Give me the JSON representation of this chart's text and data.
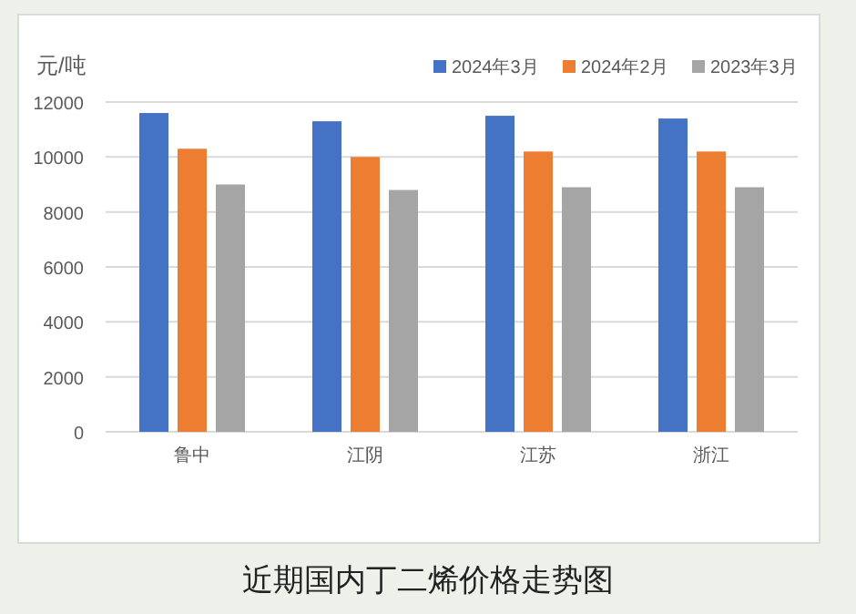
{
  "chart_data": {
    "type": "bar",
    "title": "近期国内丁二烯价格走势图",
    "ylabel": "元/吨",
    "categories": [
      "鲁中",
      "江阴",
      "江苏",
      "浙江"
    ],
    "series": [
      {
        "name": "2024年3月",
        "color": "#4472c4",
        "values": [
          11600,
          11300,
          11500,
          11400
        ]
      },
      {
        "name": "2024年2月",
        "color": "#ed7d31",
        "values": [
          10300,
          10000,
          10200,
          10200
        ]
      },
      {
        "name": "2023年3月",
        "color": "#a5a5a5",
        "values": [
          9000,
          8800,
          8900,
          8900
        ]
      }
    ],
    "ylim": [
      0,
      12000
    ],
    "yticks": [
      0,
      2000,
      4000,
      6000,
      8000,
      10000,
      12000
    ],
    "grid": "y",
    "legend": "top right"
  }
}
